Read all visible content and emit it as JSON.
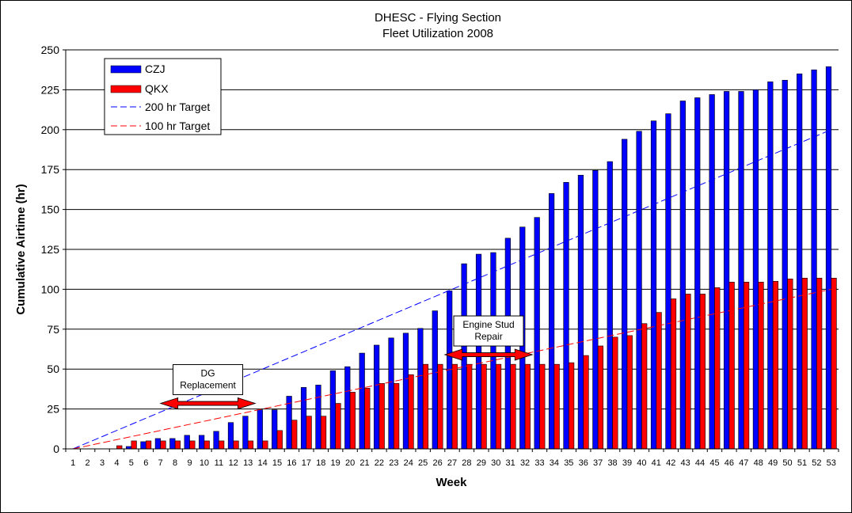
{
  "chart_data": {
    "type": "bar",
    "title": "DHESC - Flying Section",
    "subtitle": "Fleet Utilization 2008",
    "xlabel": "Week",
    "ylabel": "Cumulative Airtime (hr)",
    "ylim": [
      0,
      250
    ],
    "yticks": [
      0,
      25,
      50,
      75,
      100,
      125,
      150,
      175,
      200,
      225,
      250
    ],
    "grid": true,
    "legend_position": "top-left",
    "categories": [
      "1",
      "2",
      "3",
      "4",
      "5",
      "6",
      "7",
      "8",
      "9",
      "10",
      "11",
      "12",
      "13",
      "14",
      "15",
      "16",
      "17",
      "18",
      "19",
      "20",
      "21",
      "22",
      "23",
      "24",
      "25",
      "26",
      "27",
      "28",
      "29",
      "30",
      "31",
      "32",
      "33",
      "34",
      "35",
      "36",
      "37",
      "38",
      "39",
      "40",
      "41",
      "42",
      "43",
      "44",
      "45",
      "46",
      "47",
      "48",
      "49",
      "50",
      "51",
      "52",
      "53"
    ],
    "series": [
      {
        "name": "CZJ",
        "color": "#0000ff",
        "values": [
          0,
          0,
          0,
          0,
          1.5,
          4.5,
          6.5,
          6.5,
          8.5,
          8.5,
          11,
          16.5,
          20.5,
          24.5,
          24.5,
          33,
          38.5,
          40,
          49,
          51.5,
          60,
          65,
          69.5,
          72.5,
          75.5,
          86.5,
          99,
          116,
          122,
          123,
          132,
          139,
          145,
          160,
          167,
          171.5,
          174.5,
          180,
          194,
          199,
          205.5,
          210,
          218,
          220,
          222,
          224,
          224,
          225,
          230,
          231,
          235,
          237.5,
          239.5
        ]
      },
      {
        "name": "QKX",
        "color": "#ff0000",
        "values": [
          0,
          0,
          0,
          2,
          5,
          5,
          5,
          5,
          5,
          5,
          5,
          5,
          5,
          5,
          11.5,
          18,
          20.5,
          20.5,
          28.5,
          35.5,
          38,
          41,
          41,
          46.5,
          53,
          53,
          53,
          53,
          53,
          53,
          53,
          53,
          53,
          53,
          54,
          58.5,
          64.5,
          70,
          71,
          78.5,
          85.5,
          94,
          97,
          97,
          101,
          104.5,
          104.5,
          104.5,
          105,
          106.5,
          107,
          107,
          107
        ]
      }
    ],
    "targets": [
      {
        "name": "200 hr Target",
        "color": "#0000ff",
        "start": 0,
        "end": 200
      },
      {
        "name": "100 hr Target",
        "color": "#ff0000",
        "start": 0,
        "end": 100
      }
    ],
    "annotations": [
      {
        "label_lines": [
          "DG",
          "Replacement"
        ],
        "from_week": 7,
        "to_week": 13.5,
        "y": 28.5
      },
      {
        "label_lines": [
          "Engine Stud",
          "Repair"
        ],
        "from_week": 26.5,
        "to_week": 32.5,
        "y": 59
      }
    ]
  }
}
